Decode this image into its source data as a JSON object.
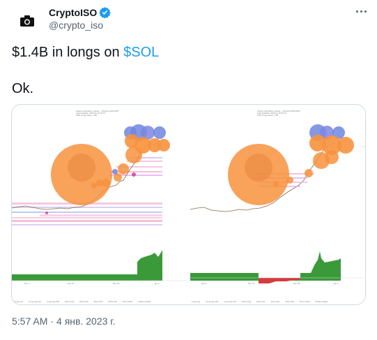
{
  "author": {
    "display_name": "CryptoISO",
    "handle": "@crypto_iso",
    "avatar_icon": "camera-icon",
    "verified_icon": "verified-badge-icon",
    "verified_color": "#1d9bf0"
  },
  "menu": {
    "more_icon": "more-dots-icon"
  },
  "tweet": {
    "line1_prefix": "$1.4B in longs on ",
    "line1_cashtag": "$SOL",
    "line2": "Ok.",
    "cashtag_color": "#1d9bf0"
  },
  "media": {
    "panels": [
      {
        "title_lines": [
          "Solana Liquidation Levels — Binance SOL/USDT",
          "Last Updated: 2023-01-04 05:57",
          "Total Longs Value: 1.4B"
        ],
        "x_ticks": [
          "Dec 2",
          "Dec 15",
          "Dec 28",
          "Jan 4"
        ]
      },
      {
        "title_lines": [
          "Solana Liquidation Levels — Binance SOL/USDT",
          "Last Updated: 2023-01-04 05:57",
          "Total Longs Value: 1.4B"
        ],
        "x_ticks": [
          "Dec 2",
          "Dec 15",
          "Dec 28",
          "Jan 4"
        ]
      }
    ],
    "legend_items": [
      "Long Liqs",
      "Long Liqs 25x",
      "Long Liqs 50x",
      "Short Liqs",
      "Short 10x",
      "Short 25x",
      "Short 50x",
      "Short 100x",
      "Position Delta"
    ]
  },
  "footer": {
    "time": "5:57 AM",
    "separator": "·",
    "date": "4 янв. 2023 г."
  }
}
